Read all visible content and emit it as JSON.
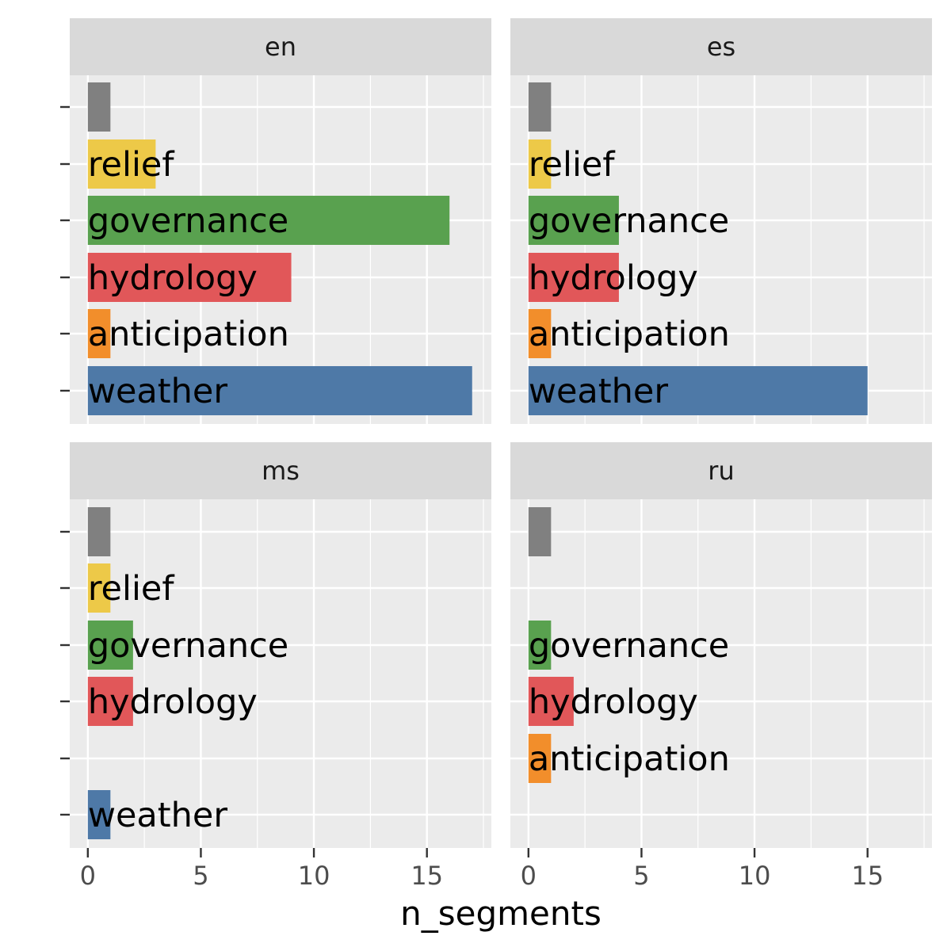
{
  "chart_data": {
    "type": "bar",
    "orientation": "horizontal",
    "facet_by": "language",
    "xlabel": "n_segments",
    "ylabel": "",
    "xlim": [
      -0.8,
      17.85
    ],
    "x_ticks": [
      0,
      5,
      10,
      15
    ],
    "grid": true,
    "legend": "none",
    "categories": [
      "",
      "relief",
      "governance",
      "hydrology",
      "anticipation",
      "weather"
    ],
    "category_colors": {
      "": "#808080",
      "relief": "#EDC948",
      "governance": "#59A14F",
      "hydrology": "#E15759",
      "anticipation": "#F28E2B",
      "weather": "#4E79A7"
    },
    "panels": [
      {
        "name": "en",
        "values": [
          1,
          3,
          16,
          9,
          1,
          17
        ]
      },
      {
        "name": "es",
        "values": [
          1,
          1,
          4,
          4,
          1,
          15
        ]
      },
      {
        "name": "ms",
        "values": [
          1,
          1,
          2,
          2,
          null,
          1
        ]
      },
      {
        "name": "ru",
        "values": [
          1,
          null,
          1,
          2,
          1,
          null
        ]
      }
    ]
  }
}
